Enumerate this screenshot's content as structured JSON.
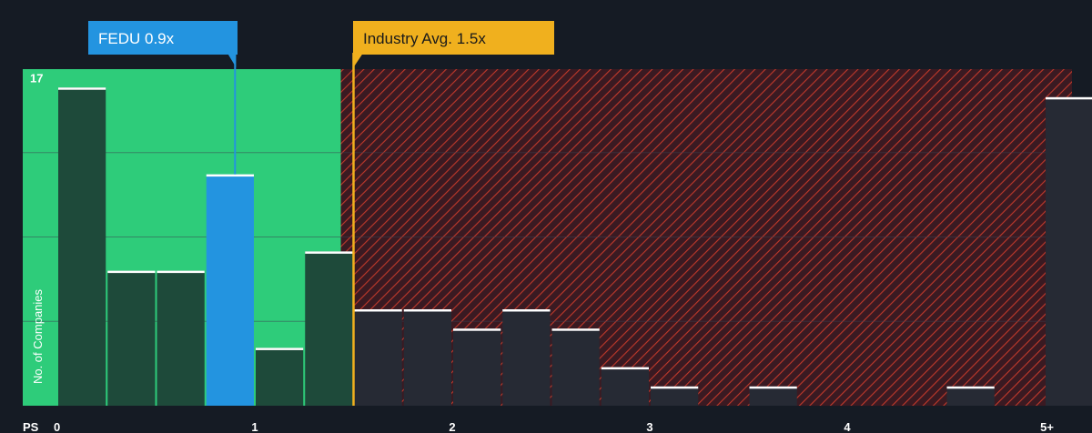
{
  "chart_data": {
    "type": "bar",
    "xlabel": "PS",
    "ylabel": "No. of Companies",
    "x_tick_labels": [
      "0",
      "1",
      "2",
      "3",
      "4",
      "5+"
    ],
    "x_ticks": [
      0,
      1,
      2,
      3,
      4,
      5
    ],
    "y_tick_labels": [
      "17"
    ],
    "y_ticks": [
      17
    ],
    "ylim": [
      0,
      17.5
    ],
    "bin_width": 0.25,
    "bins": [
      {
        "start": 0.0,
        "value": 16.5
      },
      {
        "start": 0.25,
        "value": 7
      },
      {
        "start": 0.5,
        "value": 7
      },
      {
        "start": 0.75,
        "value": 12,
        "highlight": true
      },
      {
        "start": 1.0,
        "value": 3
      },
      {
        "start": 1.25,
        "value": 8
      },
      {
        "start": 1.5,
        "value": 5
      },
      {
        "start": 1.75,
        "value": 5
      },
      {
        "start": 2.0,
        "value": 4
      },
      {
        "start": 2.25,
        "value": 5
      },
      {
        "start": 2.5,
        "value": 4
      },
      {
        "start": 2.75,
        "value": 2
      },
      {
        "start": 3.0,
        "value": 1
      },
      {
        "start": 3.5,
        "value": 1
      },
      {
        "start": 4.5,
        "value": 1
      },
      {
        "start": 5.0,
        "value": 16
      }
    ],
    "company": {
      "label": "FEDU 0.9x",
      "value": 0.9
    },
    "industry": {
      "label": "Industry Avg. 1.5x",
      "value": 1.5
    },
    "colors": {
      "background": "#151b24",
      "fair_zone": "#2ecc7a",
      "fair_bar": "#1e4a3a",
      "over_zone": "#3a1a22",
      "hatch": "#c0392b",
      "over_bar": "#262a34",
      "highlight_bar": "#2394e0",
      "company_marker": "#2394e0",
      "industry_marker": "#f0b01e",
      "bar_cap": "#ffffff",
      "grid": "#3a4050"
    }
  }
}
